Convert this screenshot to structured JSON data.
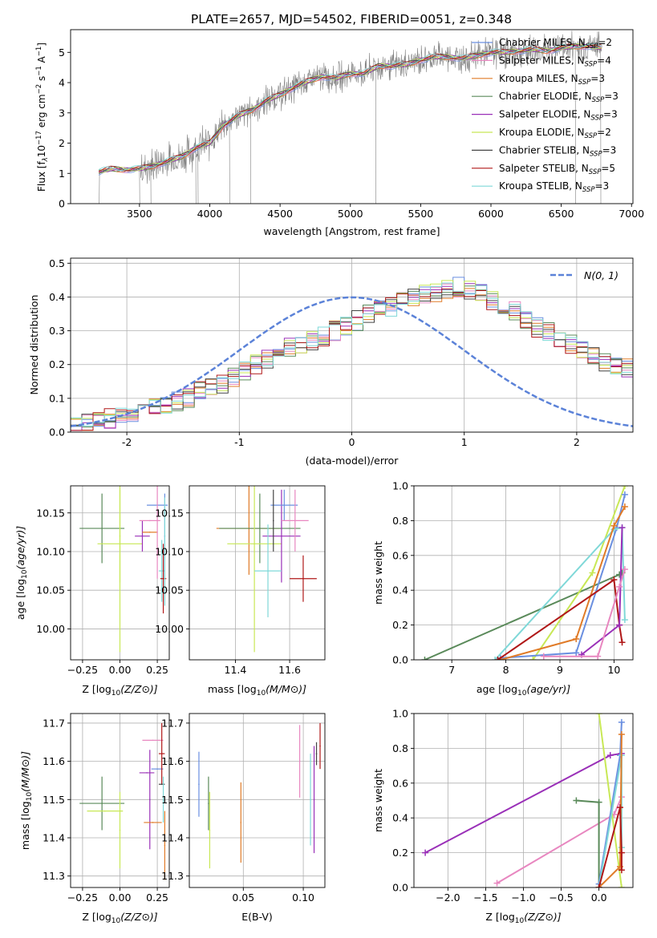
{
  "figure_title": "PLATE=2657, MJD=54502, FIBERID=0051, z=0.348",
  "colors": {
    "chabrier_miles": "#6a8fe0",
    "salpeter_miles": "#e887c0",
    "kroupa_miles": "#e07b28",
    "chabrier_elodie": "#5a8a5a",
    "salpeter_elodie": "#9a30b8",
    "kroupa_elodie": "#c8e856",
    "chabrier_stelib": "#444444",
    "salpeter_stelib": "#b01818",
    "kroupa_stelib": "#7fd8d8",
    "data_line": "#808080",
    "normal_curve": "#5b82d8",
    "grid": "#b0b0b0"
  },
  "legend": [
    {
      "label": "Chabrier MILES, N",
      "sub": "SSP",
      "count": "=2",
      "color": "#6a8fe0"
    },
    {
      "label": "Salpeter MILES, N",
      "sub": "SSP",
      "count": "=4",
      "color": "#e887c0"
    },
    {
      "label": "Kroupa MILES, N",
      "sub": "SSP",
      "count": "=3",
      "color": "#e07b28"
    },
    {
      "label": "Chabrier ELODIE, N",
      "sub": "SSP",
      "count": "=3",
      "color": "#5a8a5a"
    },
    {
      "label": "Salpeter ELODIE, N",
      "sub": "SSP",
      "count": "=3",
      "color": "#9a30b8"
    },
    {
      "label": "Kroupa ELODIE, N",
      "sub": "SSP",
      "count": "=2",
      "color": "#c8e856"
    },
    {
      "label": "Chabrier STELIB, N",
      "sub": "SSP",
      "count": "=3",
      "color": "#444444"
    },
    {
      "label": "Salpeter STELIB, N",
      "sub": "SSP",
      "count": "=5",
      "color": "#b01818"
    },
    {
      "label": "Kroupa STELIB, N",
      "sub": "SSP",
      "count": "=3",
      "color": "#7fd8d8"
    }
  ],
  "chart_data": [
    {
      "id": "spectrum",
      "type": "line",
      "xlabel": "wavelength [Angstrom, rest frame]",
      "ylabel": "Flux [f",
      "ylabel_parts": [
        "Flux [f",
        "λ",
        "10",
        "−17",
        " erg cm",
        "−2",
        " s",
        "−1",
        " A",
        "−1",
        "]"
      ],
      "xlim": [
        3010,
        7010
      ],
      "ylim": [
        0,
        5.75
      ],
      "xticks": [
        3500,
        4000,
        4500,
        5000,
        5500,
        6000,
        6500,
        7000
      ],
      "yticks": [
        0,
        1,
        2,
        3,
        4,
        5
      ],
      "continuum_points": {
        "x": [
          3210,
          3300,
          3400,
          3500,
          3600,
          3700,
          3800,
          3900,
          4000,
          4100,
          4200,
          4300,
          4400,
          4500,
          4600,
          4700,
          4800,
          4900,
          5000,
          5100,
          5200,
          5300,
          5400,
          5500,
          5600,
          5700,
          5800,
          5900,
          6000,
          6100,
          6200,
          6300,
          6400,
          6500,
          6600,
          6700,
          6790
        ],
        "y": [
          1.05,
          1.15,
          1.12,
          1.15,
          1.25,
          1.4,
          1.55,
          1.85,
          2.0,
          2.6,
          2.9,
          3.1,
          3.4,
          3.6,
          3.85,
          4.05,
          4.2,
          4.15,
          4.3,
          4.3,
          4.55,
          4.55,
          4.6,
          4.75,
          4.85,
          4.85,
          4.8,
          4.9,
          5.0,
          5.0,
          5.05,
          5.1,
          5.05,
          5.15,
          5.2,
          5.2,
          5.15
        ]
      }
    },
    {
      "id": "residuals",
      "type": "histogram",
      "xlabel": "(data-model)/error",
      "ylabel": "Normed distribution",
      "xlim": [
        -2.5,
        2.5
      ],
      "ylim": [
        0,
        0.515
      ],
      "xticks": [
        -2,
        -1,
        0,
        1,
        2
      ],
      "yticks": [
        0.0,
        0.1,
        0.2,
        0.3,
        0.4,
        0.5
      ],
      "bin_width": 0.1,
      "bin_start": -2.5,
      "base_heights": [
        0.02,
        0.03,
        0.035,
        0.04,
        0.05,
        0.06,
        0.065,
        0.075,
        0.08,
        0.09,
        0.1,
        0.12,
        0.13,
        0.145,
        0.16,
        0.18,
        0.2,
        0.215,
        0.23,
        0.25,
        0.26,
        0.27,
        0.285,
        0.3,
        0.315,
        0.33,
        0.35,
        0.36,
        0.37,
        0.385,
        0.4,
        0.41,
        0.41,
        0.42,
        0.43,
        0.42,
        0.41,
        0.39,
        0.37,
        0.36,
        0.33,
        0.31,
        0.3,
        0.28,
        0.26,
        0.24,
        0.23,
        0.21,
        0.2,
        0.19,
        0.17,
        0.15,
        0.13,
        0.11,
        0.09,
        0.08,
        0.07,
        0.06,
        0.05,
        0.045,
        0.04,
        0.035,
        0.03,
        0.025,
        0.02,
        0.04,
        0.035,
        0.03,
        0.02,
        0.015
      ],
      "legend_label": "N(0, 1)"
    },
    {
      "id": "age_vs_Z",
      "type": "scatter",
      "xlabel": "Z [log10(Z/Z⊙)]",
      "ylabel": "age  [log10(age/yr)]",
      "xlim": [
        -0.33,
        0.33
      ],
      "ylim": [
        9.96,
        10.185
      ],
      "xticks": [
        -0.25,
        0.0,
        0.25
      ],
      "xticklabels": [
        "−0.25",
        "0.00",
        "0.25"
      ],
      "yticks": [
        10.0,
        10.05,
        10.1,
        10.15
      ],
      "yticklabels": [
        "10.00",
        "10.05",
        "10.10",
        "10.15"
      ],
      "points": [
        {
          "x": -0.12,
          "y": 10.13,
          "xerr": 0.15,
          "yerr": 0.045,
          "color": "#5a8a5a"
        },
        {
          "x": 0.0,
          "y": 10.11,
          "xerr": 0.15,
          "yerr": 0.14,
          "color": "#c8e856"
        },
        {
          "x": 0.0,
          "y": 10.12,
          "xerr": 0.0,
          "yerr": 0.06,
          "color": "#c8e856"
        },
        {
          "x": 0.15,
          "y": 10.12,
          "xerr": 0.05,
          "yerr": 0.02,
          "color": "#9a30b8"
        },
        {
          "x": 0.25,
          "y": 10.16,
          "xerr": 0.07,
          "yerr": 0.0,
          "color": "#6a8fe0"
        },
        {
          "x": 0.2,
          "y": 10.14,
          "xerr": 0.07,
          "yerr": 0.0,
          "color": "#e887c0"
        },
        {
          "x": 0.2,
          "y": 10.125,
          "xerr": 0.05,
          "yerr": 0.0,
          "color": "#e07b28"
        },
        {
          "x": 0.25,
          "y": 10.125,
          "xerr": 0.0,
          "yerr": 0.06,
          "color": "#e887c0"
        },
        {
          "x": 0.28,
          "y": 10.075,
          "xerr": 0.02,
          "yerr": 0.04,
          "color": "#7fd8d8"
        },
        {
          "x": 0.29,
          "y": 10.065,
          "xerr": 0.02,
          "yerr": 0.045,
          "color": "#b01818"
        },
        {
          "x": 0.3,
          "y": 10.12,
          "xerr": 0.0,
          "yerr": 0.055,
          "color": "#6a8fe0"
        },
        {
          "x": 0.3,
          "y": 10.1,
          "xerr": 0.0,
          "yerr": 0.07,
          "color": "#7fd8d8"
        }
      ]
    },
    {
      "id": "age_vs_mass",
      "type": "scatter",
      "xlabel": "mass [log10(M/M⊙)]",
      "ylabel": "",
      "xlim": [
        11.23,
        11.73
      ],
      "ylim": [
        9.96,
        10.185
      ],
      "xticks": [
        11.4,
        11.6
      ],
      "xticklabels": [
        "11.4",
        "11.6"
      ],
      "yticks": [
        10.0,
        10.05,
        10.1,
        10.15
      ],
      "yticklabels": [
        "10.00",
        "10.05",
        "10.10",
        "10.15"
      ],
      "points": [
        {
          "x": 11.45,
          "y": 10.13,
          "xerr": 0.12,
          "yerr": 0.06,
          "color": "#e07b28"
        },
        {
          "x": 11.49,
          "y": 10.13,
          "xerr": 0.15,
          "yerr": 0.045,
          "color": "#5a8a5a"
        },
        {
          "x": 11.47,
          "y": 10.11,
          "xerr": 0.1,
          "yerr": 0.14,
          "color": "#c8e856"
        },
        {
          "x": 11.57,
          "y": 10.12,
          "xerr": 0.07,
          "yerr": 0.06,
          "color": "#9a30b8"
        },
        {
          "x": 11.58,
          "y": 10.16,
          "xerr": 0.05,
          "yerr": 0.02,
          "color": "#6a8fe0"
        },
        {
          "x": 11.62,
          "y": 10.14,
          "xerr": 0.05,
          "yerr": 0.04,
          "color": "#e887c0"
        },
        {
          "x": 11.65,
          "y": 10.065,
          "xerr": 0.05,
          "yerr": 0.03,
          "color": "#b01818"
        },
        {
          "x": 11.52,
          "y": 10.075,
          "xerr": 0.05,
          "yerr": 0.06,
          "color": "#7fd8d8"
        },
        {
          "x": 11.54,
          "y": 10.14,
          "xerr": 0.0,
          "yerr": 0.04,
          "color": "#444444"
        }
      ]
    },
    {
      "id": "massweight_vs_age",
      "type": "line",
      "xlabel": "age  [log10(age/yr)]",
      "ylabel": "mass weight",
      "xlim": [
        6.3,
        10.35
      ],
      "ylim": [
        0,
        1.0
      ],
      "xticks": [
        7,
        8,
        9,
        10
      ],
      "yticks": [
        0.0,
        0.2,
        0.4,
        0.6,
        0.8,
        1.0
      ],
      "series": [
        {
          "color": "#5a8a5a",
          "x": [
            6.5,
            10.1,
            10.15
          ],
          "y": [
            0.0,
            0.49,
            0.5
          ]
        },
        {
          "color": "#c8e856",
          "x": [
            8.5,
            9.6,
            10.2
          ],
          "y": [
            0.0,
            0.5,
            1.0
          ]
        },
        {
          "color": "#6a8fe0",
          "x": [
            7.9,
            9.3,
            10.05,
            10.2
          ],
          "y": [
            0.01,
            0.04,
            0.76,
            0.95
          ]
        },
        {
          "color": "#7fd8d8",
          "x": [
            7.8,
            10.0,
            10.15,
            10.2
          ],
          "y": [
            0.0,
            0.75,
            0.76,
            0.23
          ]
        },
        {
          "color": "#e07b28",
          "x": [
            7.9,
            9.3,
            10.0,
            10.2
          ],
          "y": [
            0.0,
            0.12,
            0.77,
            0.88
          ]
        },
        {
          "color": "#b01818",
          "x": [
            7.85,
            10.0,
            10.1,
            10.15
          ],
          "y": [
            0.0,
            0.46,
            0.2,
            0.1
          ]
        },
        {
          "color": "#9a30b8",
          "x": [
            9.4,
            10.1,
            10.15
          ],
          "y": [
            0.03,
            0.2,
            0.76
          ]
        },
        {
          "color": "#e887c0",
          "x": [
            8.7,
            9.7,
            10.1,
            10.2
          ],
          "y": [
            0.02,
            0.02,
            0.42,
            0.52
          ]
        }
      ]
    },
    {
      "id": "mass_vs_Z",
      "type": "scatter",
      "xlabel": "Z [log10(Z/Z⊙)]",
      "ylabel": "mass [log10(M/M⊙)]",
      "xlim": [
        -0.33,
        0.33
      ],
      "ylim": [
        11.27,
        11.725
      ],
      "xticks": [
        -0.25,
        0.0,
        0.25
      ],
      "xticklabels": [
        "−0.25",
        "0.00",
        "0.25"
      ],
      "yticks": [
        11.3,
        11.4,
        11.5,
        11.6,
        11.7
      ],
      "yticklabels": [
        "11.3",
        "11.4",
        "11.5",
        "11.6",
        "11.7"
      ],
      "points": [
        {
          "x": -0.12,
          "y": 11.49,
          "xerr": 0.15,
          "yerr": 0.07,
          "color": "#5a8a5a"
        },
        {
          "x": -0.1,
          "y": 11.47,
          "xerr": 0.12,
          "yerr": 0.0,
          "color": "#c8e856"
        },
        {
          "x": 0.0,
          "y": 11.42,
          "xerr": 0.0,
          "yerr": 0.1,
          "color": "#c8e856"
        },
        {
          "x": 0.18,
          "y": 11.57,
          "xerr": 0.05,
          "yerr": 0.0,
          "color": "#9a30b8"
        },
        {
          "x": 0.2,
          "y": 11.5,
          "xerr": 0.0,
          "yerr": 0.13,
          "color": "#9a30b8"
        },
        {
          "x": 0.22,
          "y": 11.44,
          "xerr": 0.06,
          "yerr": 0.0,
          "color": "#e07b28"
        },
        {
          "x": 0.22,
          "y": 11.655,
          "xerr": 0.07,
          "yerr": 0.0,
          "color": "#e887c0"
        },
        {
          "x": 0.25,
          "y": 11.58,
          "xerr": 0.04,
          "yerr": 0.0,
          "color": "#6a8fe0"
        },
        {
          "x": 0.28,
          "y": 11.62,
          "xerr": 0.02,
          "yerr": 0.08,
          "color": "#b01818"
        },
        {
          "x": 0.28,
          "y": 11.54,
          "xerr": 0.02,
          "yerr": 0.0,
          "color": "#444444"
        },
        {
          "x": 0.29,
          "y": 11.5,
          "xerr": 0.0,
          "yerr": 0.06,
          "color": "#7fd8d8"
        },
        {
          "x": 0.3,
          "y": 11.38,
          "xerr": 0.0,
          "yerr": 0.09,
          "color": "#e07b28"
        }
      ]
    },
    {
      "id": "mass_vs_ebv",
      "type": "scatter",
      "xlabel": "E(B-V)",
      "ylabel": "",
      "xlim": [
        0.005,
        0.118
      ],
      "ylim": [
        11.27,
        11.725
      ],
      "xticks": [
        0.05,
        0.1
      ],
      "xticklabels": [
        "0.05",
        "0.10"
      ],
      "yticks": [
        11.3,
        11.4,
        11.5,
        11.6,
        11.7
      ],
      "yticklabels": [
        "11.3",
        "11.4",
        "11.5",
        "11.6",
        "11.7"
      ],
      "points": [
        {
          "x": 0.013,
          "y": 11.54,
          "yerr": 0.085,
          "color": "#6a8fe0"
        },
        {
          "x": 0.021,
          "y": 11.49,
          "yerr": 0.07,
          "color": "#5a8a5a"
        },
        {
          "x": 0.022,
          "y": 11.42,
          "yerr": 0.1,
          "color": "#c8e856"
        },
        {
          "x": 0.048,
          "y": 11.44,
          "yerr": 0.105,
          "color": "#e07b28"
        },
        {
          "x": 0.097,
          "y": 11.6,
          "yerr": 0.095,
          "color": "#e887c0"
        },
        {
          "x": 0.106,
          "y": 11.5,
          "yerr": 0.12,
          "color": "#7fd8d8"
        },
        {
          "x": 0.109,
          "y": 11.5,
          "yerr": 0.14,
          "color": "#9a30b8"
        },
        {
          "x": 0.111,
          "y": 11.62,
          "yerr": 0.03,
          "color": "#444444"
        },
        {
          "x": 0.114,
          "y": 11.64,
          "yerr": 0.06,
          "color": "#b01818"
        }
      ]
    },
    {
      "id": "massweight_vs_Z",
      "type": "line",
      "xlabel": "Z [log10(Z/Z⊙)]",
      "ylabel": "mass weight",
      "xlim": [
        -2.45,
        0.45
      ],
      "ylim": [
        0,
        1.0
      ],
      "xticks": [
        -2.0,
        -1.5,
        -1.0,
        -0.5,
        0.0
      ],
      "xticklabels": [
        "−2.0",
        "−1.5",
        "−1.0",
        "−0.5",
        "0.0"
      ],
      "yticks": [
        0.0,
        0.2,
        0.4,
        0.6,
        0.8,
        1.0
      ],
      "series": [
        {
          "color": "#9a30b8",
          "x": [
            -2.3,
            0.15,
            0.3
          ],
          "y": [
            0.2,
            0.76,
            0.77
          ]
        },
        {
          "color": "#e887c0",
          "x": [
            -1.35,
            0.2,
            0.3
          ],
          "y": [
            0.025,
            0.42,
            0.52
          ]
        },
        {
          "color": "#5a8a5a",
          "x": [
            -0.3,
            0.0,
            0.0
          ],
          "y": [
            0.5,
            0.49,
            0.0
          ]
        },
        {
          "color": "#c8e856",
          "x": [
            0.0,
            0.3
          ],
          "y": [
            1.0,
            0.0
          ]
        },
        {
          "color": "#6a8fe0",
          "x": [
            0.0,
            0.28,
            0.3
          ],
          "y": [
            0.02,
            0.76,
            0.95
          ]
        },
        {
          "color": "#7fd8d8",
          "x": [
            0.0,
            0.3,
            0.3
          ],
          "y": [
            0.0,
            0.76,
            0.23
          ]
        },
        {
          "color": "#e07b28",
          "x": [
            0.0,
            0.28,
            0.3
          ],
          "y": [
            0.0,
            0.12,
            0.88
          ]
        },
        {
          "color": "#b01818",
          "x": [
            0.0,
            0.28,
            0.3,
            0.3
          ],
          "y": [
            0.0,
            0.46,
            0.2,
            0.1
          ]
        }
      ]
    }
  ]
}
